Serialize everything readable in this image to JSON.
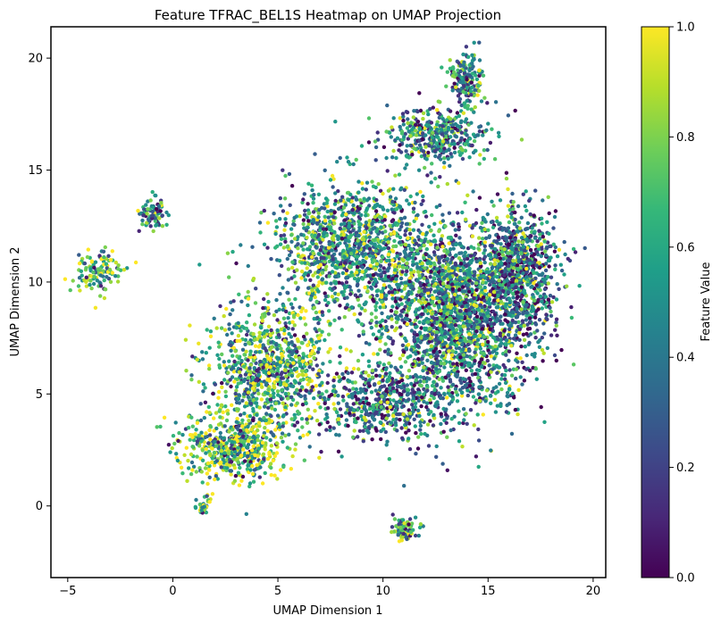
{
  "chart_data": {
    "type": "scatter",
    "title": "Feature TFRAC_BEL1S Heatmap on UMAP Projection",
    "xlabel": "UMAP Dimension 1",
    "ylabel": "UMAP Dimension 2",
    "xlim": [
      -5.8,
      20.6
    ],
    "ylim": [
      -3.2,
      21.4
    ],
    "xticks": [
      "−5",
      "0",
      "5",
      "10",
      "15",
      "20"
    ],
    "xtick_values": [
      -5,
      0,
      5,
      10,
      15,
      20
    ],
    "yticks": [
      "0",
      "5",
      "10",
      "15",
      "20"
    ],
    "ytick_values": [
      0,
      5,
      10,
      15,
      20
    ],
    "colorbar": {
      "label": "Feature Value",
      "colormap": "viridis",
      "range": [
        0,
        1
      ],
      "ticks": [
        "0.0",
        "0.2",
        "0.4",
        "0.6",
        "0.8",
        "1.0"
      ],
      "tick_values": [
        0.0,
        0.2,
        0.4,
        0.6,
        0.8,
        1.0
      ],
      "stops": [
        "#440154",
        "#482878",
        "#3e4989",
        "#31688e",
        "#26828e",
        "#1f9e89",
        "#35b779",
        "#6ece58",
        "#b5de2b",
        "#fde725"
      ]
    },
    "grid": false,
    "point_groups": [
      {
        "center": [
          13.5,
          8.5
        ],
        "spread": [
          3.0,
          3.5
        ],
        "count": 2200,
        "value_mean": 0.45
      },
      {
        "center": [
          16.5,
          10.5
        ],
        "spread": [
          1.5,
          2.5
        ],
        "count": 700,
        "value_mean": 0.3
      },
      {
        "center": [
          8.5,
          11.5
        ],
        "spread": [
          3.0,
          2.5
        ],
        "count": 1200,
        "value_mean": 0.55
      },
      {
        "center": [
          12.5,
          16.5
        ],
        "spread": [
          2.0,
          1.0
        ],
        "count": 400,
        "value_mean": 0.45
      },
      {
        "center": [
          14.0,
          19.0
        ],
        "spread": [
          0.7,
          1.0
        ],
        "count": 180,
        "value_mean": 0.5
      },
      {
        "center": [
          4.5,
          6.0
        ],
        "spread": [
          2.5,
          2.5
        ],
        "count": 900,
        "value_mean": 0.7
      },
      {
        "center": [
          3.0,
          2.5
        ],
        "spread": [
          2.0,
          1.2
        ],
        "count": 500,
        "value_mean": 0.8
      },
      {
        "center": [
          1.5,
          0.0
        ],
        "spread": [
          0.3,
          0.4
        ],
        "count": 40,
        "value_mean": 0.9
      },
      {
        "center": [
          -3.5,
          10.5
        ],
        "spread": [
          0.9,
          0.8
        ],
        "count": 120,
        "value_mean": 0.75
      },
      {
        "center": [
          -1.0,
          13.0
        ],
        "spread": [
          0.5,
          0.6
        ],
        "count": 80,
        "value_mean": 0.5
      },
      {
        "center": [
          11.0,
          -1.0
        ],
        "spread": [
          0.5,
          0.4
        ],
        "count": 90,
        "value_mean": 0.55
      },
      {
        "center": [
          10.0,
          4.5
        ],
        "spread": [
          2.5,
          1.5
        ],
        "count": 500,
        "value_mean": 0.3
      }
    ]
  }
}
